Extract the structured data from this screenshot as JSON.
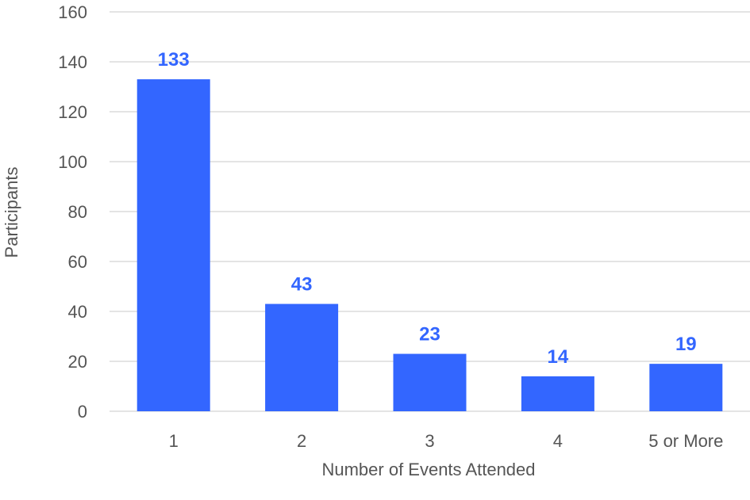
{
  "chart_data": {
    "type": "bar",
    "title": "",
    "xlabel": "Number of Events Attended",
    "ylabel": "Participants",
    "categories": [
      "1",
      "2",
      "3",
      "4",
      "5 or More"
    ],
    "values": [
      133,
      43,
      23,
      14,
      19
    ],
    "data_labels": [
      "133",
      "43",
      "23",
      "14",
      "19"
    ],
    "ylim": [
      0,
      160
    ],
    "yticks": [
      0,
      20,
      40,
      60,
      80,
      100,
      120,
      140,
      160
    ],
    "grid": true,
    "legend": "none",
    "bar_color": "#3366ff",
    "label_color": "#3366ff"
  }
}
